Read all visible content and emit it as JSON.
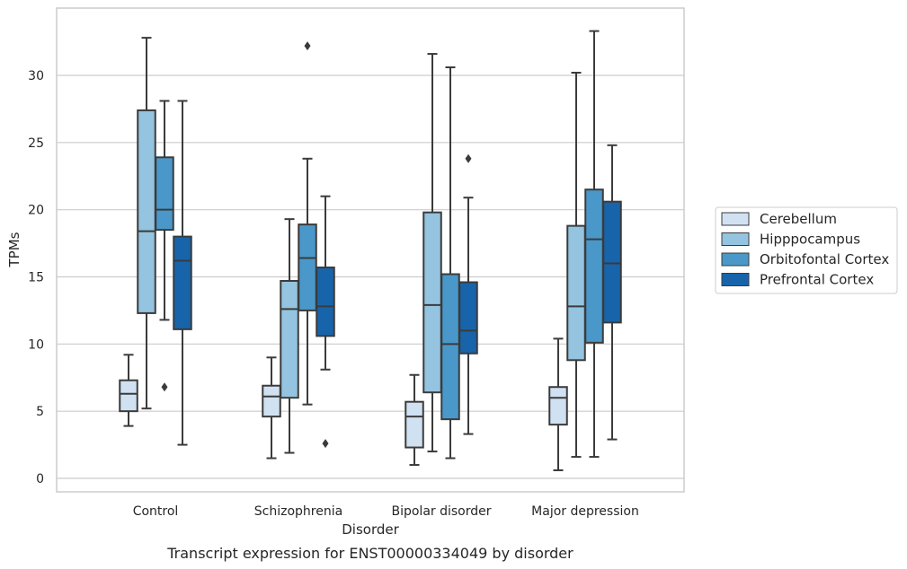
{
  "chart_data": {
    "type": "box",
    "xlabel": "Disorder",
    "ylabel": "TPMs",
    "caption": "Transcript expression for ENST00000334049 by disorder",
    "ylim": [
      -0.9,
      35
    ],
    "yticks": [
      0,
      5,
      10,
      15,
      20,
      25,
      30
    ],
    "grid": "horizontal",
    "legend_position": "right",
    "categories": [
      "Control",
      "Schizophrenia",
      "Bipolar disorder",
      "Major depression"
    ],
    "series": [
      {
        "name": "Cerebellum",
        "color": "#d0e1f2",
        "boxes": [
          {
            "whisker_low": 3.9,
            "q1": 5.0,
            "median": 6.3,
            "q3": 7.3,
            "whisker_high": 9.2,
            "outliers": []
          },
          {
            "whisker_low": 1.5,
            "q1": 4.6,
            "median": 6.1,
            "q3": 6.9,
            "whisker_high": 9.0,
            "outliers": []
          },
          {
            "whisker_low": 1.0,
            "q1": 2.3,
            "median": 4.6,
            "q3": 5.7,
            "whisker_high": 7.7,
            "outliers": []
          },
          {
            "whisker_low": 0.6,
            "q1": 4.0,
            "median": 6.0,
            "q3": 6.8,
            "whisker_high": 10.4,
            "outliers": []
          }
        ]
      },
      {
        "name": "Hipppocampus",
        "color": "#94c4df",
        "boxes": [
          {
            "whisker_low": 5.2,
            "q1": 12.3,
            "median": 18.4,
            "q3": 27.4,
            "whisker_high": 32.8,
            "outliers": []
          },
          {
            "whisker_low": 1.9,
            "q1": 6.0,
            "median": 12.6,
            "q3": 14.7,
            "whisker_high": 19.3,
            "outliers": []
          },
          {
            "whisker_low": 2.0,
            "q1": 6.4,
            "median": 12.9,
            "q3": 19.8,
            "whisker_high": 31.6,
            "outliers": []
          },
          {
            "whisker_low": 1.6,
            "q1": 8.8,
            "median": 12.8,
            "q3": 18.8,
            "whisker_high": 30.2,
            "outliers": []
          }
        ]
      },
      {
        "name": "Orbitofontal Cortex",
        "color": "#4a98c9",
        "boxes": [
          {
            "whisker_low": 11.8,
            "q1": 18.5,
            "median": 20.0,
            "q3": 23.9,
            "whisker_high": 28.1,
            "outliers": [
              6.8
            ]
          },
          {
            "whisker_low": 5.5,
            "q1": 12.5,
            "median": 16.4,
            "q3": 18.9,
            "whisker_high": 23.8,
            "outliers": [
              32.2
            ]
          },
          {
            "whisker_low": 1.5,
            "q1": 4.4,
            "median": 10.0,
            "q3": 15.2,
            "whisker_high": 30.6,
            "outliers": []
          },
          {
            "whisker_low": 1.6,
            "q1": 10.1,
            "median": 17.8,
            "q3": 21.5,
            "whisker_high": 33.3,
            "outliers": []
          }
        ]
      },
      {
        "name": "Prefrontal Cortex",
        "color": "#1764ab",
        "boxes": [
          {
            "whisker_low": 2.5,
            "q1": 11.1,
            "median": 16.2,
            "q3": 18.0,
            "whisker_high": 28.1,
            "outliers": []
          },
          {
            "whisker_low": 8.1,
            "q1": 10.6,
            "median": 12.8,
            "q3": 15.7,
            "whisker_high": 21.0,
            "outliers": [
              2.6
            ]
          },
          {
            "whisker_low": 3.3,
            "q1": 9.3,
            "median": 11.0,
            "q3": 14.6,
            "whisker_high": 20.9,
            "outliers": [
              23.8
            ]
          },
          {
            "whisker_low": 2.9,
            "q1": 11.6,
            "median": 16.0,
            "q3": 20.6,
            "whisker_high": 24.8,
            "outliers": []
          }
        ]
      }
    ]
  }
}
